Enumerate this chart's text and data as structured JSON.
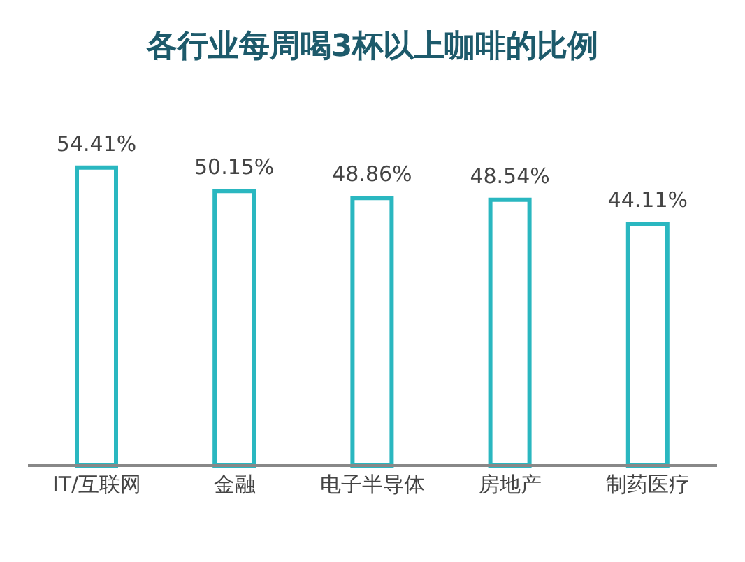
{
  "chart_data": {
    "type": "bar",
    "title": "各行业每周喝3杯以上咖啡的比例",
    "categories": [
      "IT/互联网",
      "金融",
      "电子半导体",
      "房地产",
      "制药医疗"
    ],
    "values": [
      54.41,
      50.15,
      48.86,
      48.54,
      44.11
    ],
    "color": "#2ab7c0",
    "value_labels": [
      "54.41%",
      "50.15%",
      "48.86%",
      "48.54%",
      "44.11%"
    ]
  }
}
